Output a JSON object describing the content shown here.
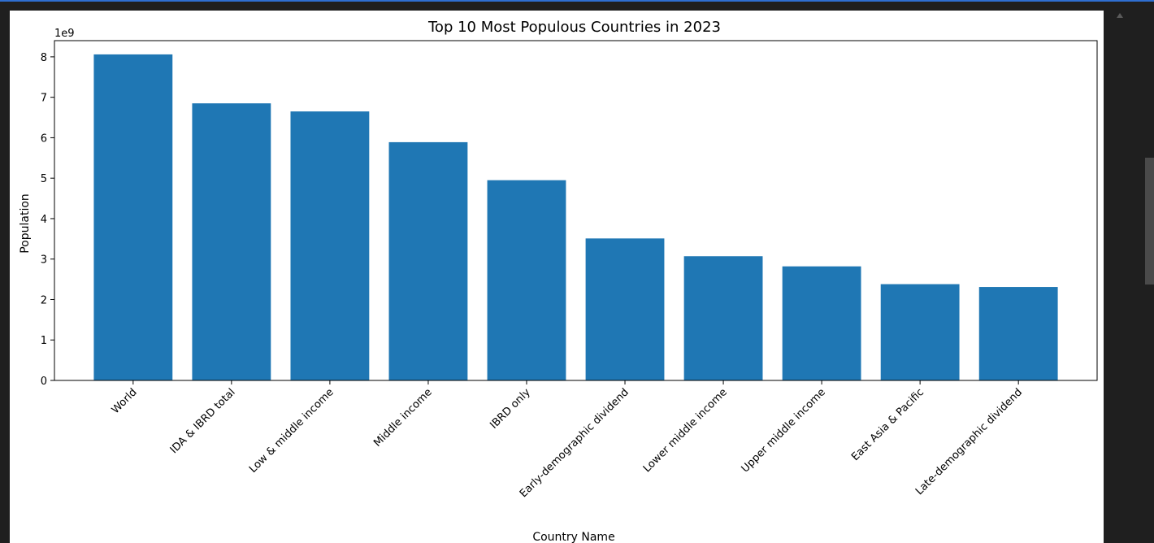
{
  "chart_data": {
    "type": "bar",
    "title": "Top 10 Most Populous Countries in 2023",
    "xlabel": "Country Name",
    "ylabel": "Population",
    "offset_label": "1e9",
    "ylim": [
      0,
      8.4
    ],
    "yticks": [
      0,
      1,
      2,
      3,
      4,
      5,
      6,
      7,
      8
    ],
    "categories": [
      "World",
      "IDA & IBRD total",
      "Low & middle income",
      "Middle income",
      "IBRD only",
      "Early-demographic dividend",
      "Lower middle income",
      "Upper middle income",
      "East Asia & Pacific",
      "Late-demographic dividend"
    ],
    "values": [
      8.06,
      6.85,
      6.65,
      5.89,
      4.95,
      3.51,
      3.07,
      2.82,
      2.38,
      2.31
    ],
    "bar_color": "#1f77b4",
    "grid": false
  }
}
